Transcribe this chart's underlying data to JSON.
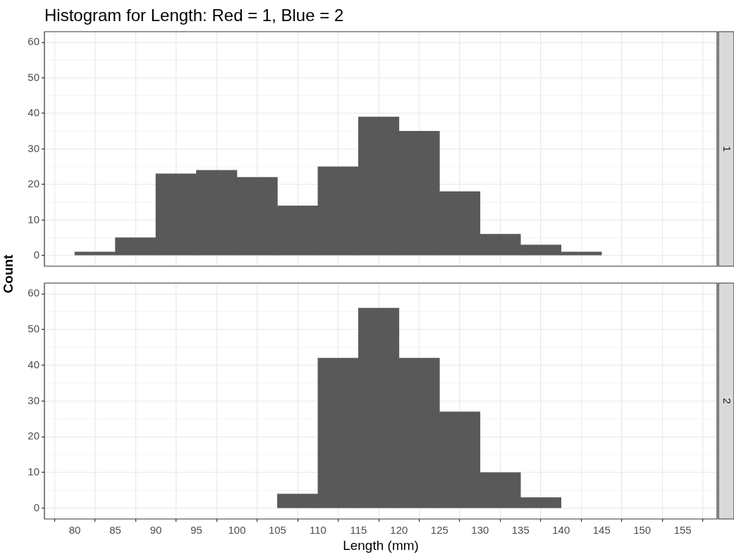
{
  "chart_data": [
    {
      "type": "histogram",
      "title": "Histogram for Length: Red = 1, Blue = 2",
      "ylabel": "Count",
      "y2label": "1",
      "bins": [
        80,
        85,
        90,
        95,
        100,
        105,
        110,
        115,
        120,
        125,
        130,
        135,
        140,
        145
      ],
      "values": [
        1,
        5,
        23,
        24,
        22,
        14,
        25,
        39,
        35,
        18,
        6,
        3,
        1
      ],
      "color": "#595959",
      "xlim": [
        76.25,
        159.25
      ],
      "ylim": [
        -3,
        63
      ],
      "xticks": [
        80,
        85,
        90,
        95,
        100,
        105,
        110,
        115,
        120,
        125,
        130,
        135,
        140,
        145,
        150,
        155
      ],
      "yticks": [
        0,
        10,
        20,
        30,
        40,
        50,
        60
      ],
      "grid": true,
      "tick_labels": "y"
    },
    {
      "type": "histogram",
      "xlabel": "Length (mm)",
      "y2label": "2",
      "bins": [
        105,
        110,
        115,
        120,
        125,
        130,
        135,
        140
      ],
      "values": [
        4,
        42,
        56,
        42,
        27,
        10,
        3
      ],
      "color": "#595959",
      "xlim": [
        76.25,
        159.25
      ],
      "ylim": [
        -3,
        63
      ],
      "xticks": [
        80,
        85,
        90,
        95,
        100,
        105,
        110,
        115,
        120,
        125,
        130,
        135,
        140,
        145,
        150,
        155
      ],
      "yticks": [
        0,
        10,
        20,
        30,
        40,
        50,
        60
      ],
      "grid": true
    }
  ]
}
